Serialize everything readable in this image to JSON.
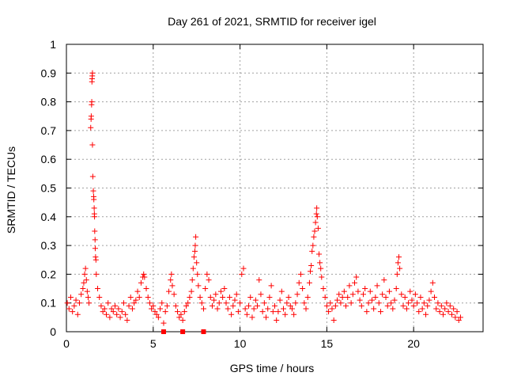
{
  "chart_data": {
    "type": "scatter",
    "title": "Day 261 of 2021, SRMTID for receiver igel",
    "xlabel": "GPS time / hours",
    "ylabel": "SRMTID / TECUs",
    "xlim": [
      0,
      24
    ],
    "ylim": [
      0,
      1
    ],
    "x_ticks": [
      0,
      5,
      10,
      15,
      20
    ],
    "x_tick_labels": [
      "0",
      "5",
      "10",
      "15",
      "20"
    ],
    "y_ticks": [
      0,
      0.1,
      0.2,
      0.3,
      0.4,
      0.5,
      0.6,
      0.7,
      0.8,
      0.9,
      1
    ],
    "y_tick_labels": [
      "0",
      "0.1",
      "0.2",
      "0.3",
      "0.4",
      "0.5",
      "0.6",
      "0.7",
      "0.8",
      "0.9",
      "1"
    ],
    "grid": true,
    "marker": "+",
    "color": "#ff0000",
    "series": [
      {
        "name": "SRMTID",
        "points": [
          [
            0.05,
            0.1
          ],
          [
            0.15,
            0.08
          ],
          [
            0.25,
            0.12
          ],
          [
            0.35,
            0.07
          ],
          [
            0.45,
            0.09
          ],
          [
            0.55,
            0.11
          ],
          [
            0.65,
            0.06
          ],
          [
            0.75,
            0.1
          ],
          [
            0.85,
            0.13
          ],
          [
            0.95,
            0.15
          ],
          [
            1.0,
            0.17
          ],
          [
            1.05,
            0.2
          ],
          [
            1.1,
            0.22
          ],
          [
            1.15,
            0.18
          ],
          [
            1.2,
            0.14
          ],
          [
            1.25,
            0.12
          ],
          [
            1.3,
            0.1
          ],
          [
            1.4,
            0.71
          ],
          [
            1.42,
            0.74
          ],
          [
            1.43,
            0.75
          ],
          [
            1.45,
            0.79
          ],
          [
            1.46,
            0.8
          ],
          [
            1.47,
            0.87
          ],
          [
            1.48,
            0.88
          ],
          [
            1.49,
            0.89
          ],
          [
            1.5,
            0.9
          ],
          [
            1.5,
            0.65
          ],
          [
            1.52,
            0.54
          ],
          [
            1.55,
            0.49
          ],
          [
            1.57,
            0.47
          ],
          [
            1.58,
            0.46
          ],
          [
            1.6,
            0.43
          ],
          [
            1.61,
            0.41
          ],
          [
            1.62,
            0.4
          ],
          [
            1.63,
            0.35
          ],
          [
            1.65,
            0.32
          ],
          [
            1.66,
            0.29
          ],
          [
            1.68,
            0.26
          ],
          [
            1.7,
            0.25
          ],
          [
            1.72,
            0.2
          ],
          [
            1.8,
            0.15
          ],
          [
            1.9,
            0.12
          ],
          [
            2.0,
            0.09
          ],
          [
            2.1,
            0.07
          ],
          [
            2.2,
            0.08
          ],
          [
            2.3,
            0.06
          ],
          [
            2.4,
            0.1
          ],
          [
            2.5,
            0.05
          ],
          [
            2.6,
            0.08
          ],
          [
            2.7,
            0.07
          ],
          [
            2.8,
            0.09
          ],
          [
            2.9,
            0.06
          ],
          [
            3.0,
            0.08
          ],
          [
            3.1,
            0.05
          ],
          [
            3.2,
            0.07
          ],
          [
            3.3,
            0.1
          ],
          [
            3.4,
            0.06
          ],
          [
            3.5,
            0.04
          ],
          [
            3.6,
            0.09
          ],
          [
            3.7,
            0.12
          ],
          [
            3.8,
            0.08
          ],
          [
            3.9,
            0.1
          ],
          [
            4.0,
            0.11
          ],
          [
            4.1,
            0.14
          ],
          [
            4.2,
            0.12
          ],
          [
            4.3,
            0.17
          ],
          [
            4.4,
            0.19
          ],
          [
            4.45,
            0.2
          ],
          [
            4.5,
            0.19
          ],
          [
            4.6,
            0.15
          ],
          [
            4.7,
            0.12
          ],
          [
            4.8,
            0.1
          ],
          [
            4.9,
            0.08
          ],
          [
            5.0,
            0.09
          ],
          [
            5.1,
            0.07
          ],
          [
            5.2,
            0.06
          ],
          [
            5.3,
            0.05
          ],
          [
            5.4,
            0.08
          ],
          [
            5.5,
            0.1
          ],
          [
            5.6,
            0.03
          ],
          [
            5.7,
            0.07
          ],
          [
            5.8,
            0.09
          ],
          [
            5.9,
            0.14
          ],
          [
            6.0,
            0.18
          ],
          [
            6.05,
            0.2
          ],
          [
            6.1,
            0.16
          ],
          [
            6.2,
            0.13
          ],
          [
            6.3,
            0.09
          ],
          [
            6.4,
            0.07
          ],
          [
            6.5,
            0.05
          ],
          [
            6.6,
            0.06
          ],
          [
            6.7,
            0.04
          ],
          [
            6.8,
            0.07
          ],
          [
            6.9,
            0.09
          ],
          [
            7.0,
            0.1
          ],
          [
            7.1,
            0.12
          ],
          [
            7.2,
            0.14
          ],
          [
            7.25,
            0.18
          ],
          [
            7.3,
            0.22
          ],
          [
            7.35,
            0.26
          ],
          [
            7.4,
            0.28
          ],
          [
            7.42,
            0.3
          ],
          [
            7.45,
            0.33
          ],
          [
            7.5,
            0.24
          ],
          [
            7.55,
            0.2
          ],
          [
            7.6,
            0.16
          ],
          [
            7.7,
            0.12
          ],
          [
            7.8,
            0.1
          ],
          [
            7.9,
            0.08
          ],
          [
            8.0,
            0.15
          ],
          [
            8.1,
            0.2
          ],
          [
            8.2,
            0.18
          ],
          [
            8.3,
            0.12
          ],
          [
            8.4,
            0.09
          ],
          [
            8.5,
            0.11
          ],
          [
            8.6,
            0.13
          ],
          [
            8.7,
            0.08
          ],
          [
            8.8,
            0.1
          ],
          [
            8.9,
            0.14
          ],
          [
            9.0,
            0.12
          ],
          [
            9.1,
            0.15
          ],
          [
            9.2,
            0.1
          ],
          [
            9.3,
            0.08
          ],
          [
            9.4,
            0.12
          ],
          [
            9.5,
            0.06
          ],
          [
            9.6,
            0.09
          ],
          [
            9.7,
            0.11
          ],
          [
            9.8,
            0.13
          ],
          [
            9.9,
            0.07
          ],
          [
            10.0,
            0.1
          ],
          [
            10.1,
            0.2
          ],
          [
            10.2,
            0.22
          ],
          [
            10.3,
            0.08
          ],
          [
            10.4,
            0.06
          ],
          [
            10.5,
            0.09
          ],
          [
            10.6,
            0.12
          ],
          [
            10.7,
            0.05
          ],
          [
            10.8,
            0.08
          ],
          [
            10.9,
            0.11
          ],
          [
            11.0,
            0.09
          ],
          [
            11.1,
            0.18
          ],
          [
            11.2,
            0.13
          ],
          [
            11.3,
            0.07
          ],
          [
            11.4,
            0.1
          ],
          [
            11.5,
            0.05
          ],
          [
            11.6,
            0.08
          ],
          [
            11.7,
            0.12
          ],
          [
            11.8,
            0.16
          ],
          [
            11.9,
            0.07
          ],
          [
            12.0,
            0.09
          ],
          [
            12.1,
            0.04
          ],
          [
            12.2,
            0.07
          ],
          [
            12.3,
            0.11
          ],
          [
            12.4,
            0.14
          ],
          [
            12.5,
            0.08
          ],
          [
            12.6,
            0.06
          ],
          [
            12.7,
            0.1
          ],
          [
            12.8,
            0.12
          ],
          [
            12.9,
            0.09
          ],
          [
            13.0,
            0.08
          ],
          [
            13.1,
            0.06
          ],
          [
            13.2,
            0.1
          ],
          [
            13.3,
            0.13
          ],
          [
            13.4,
            0.17
          ],
          [
            13.5,
            0.2
          ],
          [
            13.6,
            0.15
          ],
          [
            13.7,
            0.1
          ],
          [
            13.8,
            0.08
          ],
          [
            13.9,
            0.12
          ],
          [
            14.0,
            0.17
          ],
          [
            14.05,
            0.21
          ],
          [
            14.1,
            0.23
          ],
          [
            14.15,
            0.28
          ],
          [
            14.2,
            0.3
          ],
          [
            14.25,
            0.33
          ],
          [
            14.3,
            0.35
          ],
          [
            14.35,
            0.38
          ],
          [
            14.4,
            0.41
          ],
          [
            14.42,
            0.43
          ],
          [
            14.45,
            0.4
          ],
          [
            14.5,
            0.36
          ],
          [
            14.55,
            0.27
          ],
          [
            14.6,
            0.24
          ],
          [
            14.65,
            0.22
          ],
          [
            14.7,
            0.19
          ],
          [
            14.8,
            0.15
          ],
          [
            14.9,
            0.12
          ],
          [
            15.0,
            0.09
          ],
          [
            15.1,
            0.07
          ],
          [
            15.2,
            0.1
          ],
          [
            15.3,
            0.08
          ],
          [
            15.4,
            0.04
          ],
          [
            15.5,
            0.09
          ],
          [
            15.6,
            0.11
          ],
          [
            15.7,
            0.13
          ],
          [
            15.8,
            0.1
          ],
          [
            15.9,
            0.12
          ],
          [
            16.0,
            0.14
          ],
          [
            16.1,
            0.09
          ],
          [
            16.2,
            0.12
          ],
          [
            16.3,
            0.16
          ],
          [
            16.4,
            0.1
          ],
          [
            16.5,
            0.13
          ],
          [
            16.6,
            0.17
          ],
          [
            16.7,
            0.19
          ],
          [
            16.8,
            0.14
          ],
          [
            16.9,
            0.11
          ],
          [
            17.0,
            0.09
          ],
          [
            17.1,
            0.13
          ],
          [
            17.2,
            0.15
          ],
          [
            17.3,
            0.07
          ],
          [
            17.4,
            0.1
          ],
          [
            17.5,
            0.14
          ],
          [
            17.6,
            0.11
          ],
          [
            17.7,
            0.08
          ],
          [
            17.8,
            0.12
          ],
          [
            17.9,
            0.16
          ],
          [
            18.0,
            0.1
          ],
          [
            18.1,
            0.07
          ],
          [
            18.2,
            0.13
          ],
          [
            18.3,
            0.18
          ],
          [
            18.4,
            0.12
          ],
          [
            18.5,
            0.09
          ],
          [
            18.6,
            0.14
          ],
          [
            18.7,
            0.1
          ],
          [
            18.8,
            0.08
          ],
          [
            18.9,
            0.11
          ],
          [
            19.0,
            0.15
          ],
          [
            19.05,
            0.2
          ],
          [
            19.1,
            0.24
          ],
          [
            19.15,
            0.26
          ],
          [
            19.2,
            0.22
          ],
          [
            19.3,
            0.13
          ],
          [
            19.4,
            0.09
          ],
          [
            19.5,
            0.12
          ],
          [
            19.6,
            0.08
          ],
          [
            19.7,
            0.1
          ],
          [
            19.8,
            0.14
          ],
          [
            19.9,
            0.11
          ],
          [
            20.0,
            0.09
          ],
          [
            20.1,
            0.13
          ],
          [
            20.2,
            0.1
          ],
          [
            20.3,
            0.07
          ],
          [
            20.4,
            0.12
          ],
          [
            20.5,
            0.08
          ],
          [
            20.6,
            0.1
          ],
          [
            20.7,
            0.06
          ],
          [
            20.8,
            0.09
          ],
          [
            20.9,
            0.11
          ],
          [
            21.0,
            0.14
          ],
          [
            21.1,
            0.17
          ],
          [
            21.2,
            0.12
          ],
          [
            21.3,
            0.08
          ],
          [
            21.4,
            0.1
          ],
          [
            21.5,
            0.07
          ],
          [
            21.6,
            0.09
          ],
          [
            21.7,
            0.06
          ],
          [
            21.8,
            0.08
          ],
          [
            21.9,
            0.1
          ],
          [
            22.0,
            0.07
          ],
          [
            22.1,
            0.09
          ],
          [
            22.2,
            0.06
          ],
          [
            22.3,
            0.08
          ],
          [
            22.4,
            0.05
          ],
          [
            22.5,
            0.07
          ],
          [
            22.6,
            0.04
          ],
          [
            22.7,
            0.05
          ]
        ]
      }
    ],
    "gap_markers": [
      5.6,
      6.7,
      7.9
    ]
  }
}
